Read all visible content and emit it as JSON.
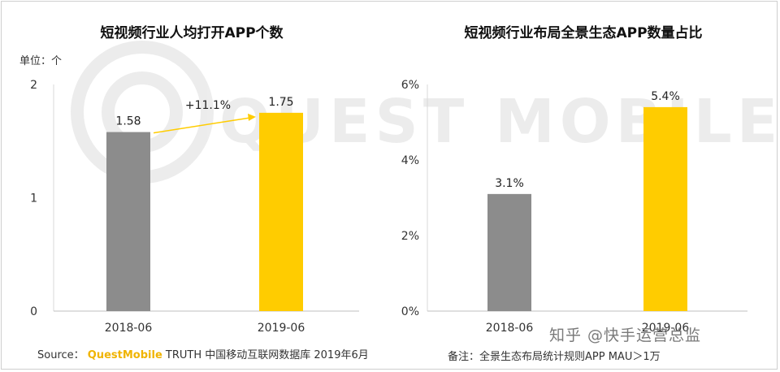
{
  "chart_data": [
    {
      "type": "bar",
      "title": "短视频行业人均打开APP个数",
      "unit_label": "单位：个",
      "categories": [
        "2018-06",
        "2019-06"
      ],
      "values": [
        1.58,
        1.75
      ],
      "value_labels": [
        "1.58",
        "1.75"
      ],
      "bar_colors": [
        "#8c8c8c",
        "#ffcc00"
      ],
      "ylim": [
        0,
        2
      ],
      "yticks": [
        "0",
        "1",
        "2"
      ],
      "growth_label": "+11.1%",
      "growth_color": "#ffcc00",
      "grid": false
    },
    {
      "type": "bar",
      "title": "短视频行业布局全景生态APP数量占比",
      "categories": [
        "2018-06",
        "2019-06"
      ],
      "values": [
        3.1,
        5.4
      ],
      "value_labels": [
        "3.1%",
        "5.4%"
      ],
      "bar_colors": [
        "#8c8c8c",
        "#ffcc00"
      ],
      "ylim": [
        0,
        6
      ],
      "yticks": [
        "0%",
        "2%",
        "4%",
        "6%"
      ],
      "grid": false
    }
  ],
  "watermark": {
    "text": "QUEST MOBILE",
    "icon": "questmobile-logo-icon"
  },
  "footer": {
    "source_prefix": "Source：",
    "source_brand": "QuestMobile",
    "source_rest": "TRUTH 中国移动互联网数据库 2019年6月",
    "note": "备注：全景生态布局统计规则APP MAU＞1万",
    "credit": "知乎 @快手运营总监"
  },
  "colors": {
    "accent": "#ffcc00",
    "gray": "#8c8c8c",
    "axis": "#d0d0d0"
  }
}
